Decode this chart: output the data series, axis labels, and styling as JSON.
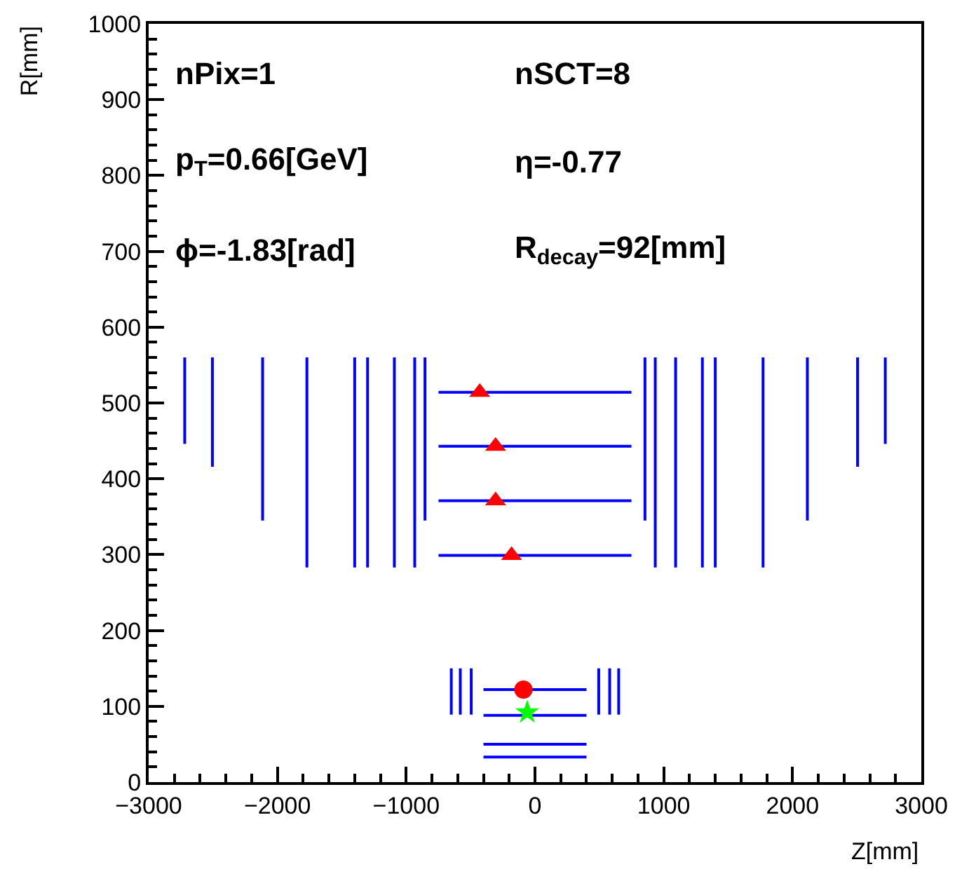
{
  "chart_data": {
    "type": "line",
    "xlabel": "Z[mm]",
    "ylabel": "R[mm]",
    "annotations": [
      "nPix=1",
      "nSCT=8",
      "p$_{T}$=0.66[GeV]",
      "η=-0.77",
      "ϕ=-1.83[rad]",
      "R$_{decay}$=92[mm]"
    ],
    "series": [
      {
        "color": "#0000ff",
        "x": [
          -749,
          749
        ],
        "values": [
          514,
          514
        ]
      },
      {
        "color": "#0000ff",
        "x": [
          -749,
          749
        ],
        "values": [
          443,
          443
        ]
      },
      {
        "color": "#0000ff",
        "x": [
          -749,
          749
        ],
        "values": [
          371,
          371
        ]
      },
      {
        "color": "#0000ff",
        "x": [
          -749,
          749
        ],
        "values": [
          299,
          299
        ]
      },
      {
        "color": "#0000ff",
        "x": [
          -400,
          400
        ],
        "values": [
          122,
          122
        ]
      },
      {
        "color": "#0000ff",
        "x": [
          -400,
          400
        ],
        "values": [
          88,
          88
        ]
      },
      {
        "color": "#0000ff",
        "x": [
          -400,
          400
        ],
        "values": [
          50,
          50
        ]
      },
      {
        "color": "#0000ff",
        "x": [
          -400,
          400
        ],
        "values": [
          33,
          33
        ]
      },
      {
        "color": "#0000ff",
        "x": [
          -2720,
          -2720
        ],
        "values": [
          446,
          560
        ]
      },
      {
        "color": "#0000ff",
        "x": [
          -2505,
          -2505
        ],
        "values": [
          416,
          560
        ]
      },
      {
        "color": "#0000ff",
        "x": [
          -2115,
          -2115
        ],
        "values": [
          345,
          560
        ]
      },
      {
        "color": "#0000ff",
        "x": [
          -1771,
          -1771
        ],
        "values": [
          283,
          560
        ]
      },
      {
        "color": "#0000ff",
        "x": [
          -1400,
          -1400
        ],
        "values": [
          283,
          560
        ]
      },
      {
        "color": "#0000ff",
        "x": [
          -1300,
          -1300
        ],
        "values": [
          283,
          560
        ]
      },
      {
        "color": "#0000ff",
        "x": [
          -1092,
          -1092
        ],
        "values": [
          283,
          560
        ]
      },
      {
        "color": "#0000ff",
        "x": [
          -934,
          -934
        ],
        "values": [
          283,
          560
        ]
      },
      {
        "color": "#0000ff",
        "x": [
          -854,
          -854
        ],
        "values": [
          345,
          560
        ]
      },
      {
        "color": "#0000ff",
        "x": [
          854,
          854
        ],
        "values": [
          345,
          560
        ]
      },
      {
        "color": "#0000ff",
        "x": [
          934,
          934
        ],
        "values": [
          283,
          560
        ]
      },
      {
        "color": "#0000ff",
        "x": [
          1092,
          1092
        ],
        "values": [
          283,
          560
        ]
      },
      {
        "color": "#0000ff",
        "x": [
          1300,
          1300
        ],
        "values": [
          283,
          560
        ]
      },
      {
        "color": "#0000ff",
        "x": [
          1400,
          1400
        ],
        "values": [
          283,
          560
        ]
      },
      {
        "color": "#0000ff",
        "x": [
          1771,
          1771
        ],
        "values": [
          283,
          560
        ]
      },
      {
        "color": "#0000ff",
        "x": [
          2115,
          2115
        ],
        "values": [
          345,
          560
        ]
      },
      {
        "color": "#0000ff",
        "x": [
          2505,
          2505
        ],
        "values": [
          416,
          560
        ]
      },
      {
        "color": "#0000ff",
        "x": [
          2720,
          2720
        ],
        "values": [
          446,
          560
        ]
      },
      {
        "color": "#0000ff",
        "x": [
          -650,
          -650
        ],
        "values": [
          89,
          150
        ]
      },
      {
        "color": "#0000ff",
        "x": [
          -580,
          -580
        ],
        "values": [
          89,
          150
        ]
      },
      {
        "color": "#0000ff",
        "x": [
          -495,
          -495
        ],
        "values": [
          89,
          150
        ]
      },
      {
        "color": "#0000ff",
        "x": [
          495,
          495
        ],
        "values": [
          89,
          150
        ]
      },
      {
        "color": "#0000ff",
        "x": [
          580,
          580
        ],
        "values": [
          89,
          150
        ]
      },
      {
        "color": "#0000ff",
        "x": [
          650,
          650
        ],
        "values": [
          89,
          150
        ]
      },
      {
        "type": "scatter",
        "color": "#ff0000",
        "marker": "triangle",
        "x": [
          -429,
          -306,
          -306,
          -182
        ],
        "values": [
          514,
          443,
          371,
          299
        ]
      },
      {
        "type": "scatter",
        "color": "#ff0000",
        "marker": "circle",
        "x": [
          -90
        ],
        "values": [
          122
        ]
      },
      {
        "type": "scatter",
        "color": "#00ff00",
        "marker": "star",
        "x": [
          -60
        ],
        "values": [
          92
        ]
      }
    ],
    "xlim": [
      -3000,
      3000
    ],
    "xticks": [
      {
        "value": -3000,
        "label": "−3000"
      },
      {
        "value": -2000,
        "label": "−2000"
      },
      {
        "value": -1000,
        "label": "−1000"
      },
      0,
      1000,
      2000,
      3000,
      {
        "value": -2800,
        "label": null
      },
      {
        "value": -2600,
        "label": null
      },
      {
        "value": -2400,
        "label": null
      },
      {
        "value": -2200,
        "label": null
      },
      {
        "value": -1800,
        "label": null
      },
      {
        "value": -1600,
        "label": null
      },
      {
        "value": -1400,
        "label": null
      },
      {
        "value": -1200,
        "label": null
      },
      {
        "value": -800,
        "label": null
      },
      {
        "value": -600,
        "label": null
      },
      {
        "value": -400,
        "label": null
      },
      {
        "value": -200,
        "label": null
      },
      {
        "value": 200,
        "label": null
      },
      {
        "value": 400,
        "label": null
      },
      {
        "value": 600,
        "label": null
      },
      {
        "value": 800,
        "label": null
      },
      {
        "value": 1200,
        "label": null
      },
      {
        "value": 1400,
        "label": null
      },
      {
        "value": 1600,
        "label": null
      },
      {
        "value": 1800,
        "label": null
      },
      {
        "value": 2200,
        "label": null
      },
      {
        "value": 2400,
        "label": null
      },
      {
        "value": 2600,
        "label": null
      },
      {
        "value": 2800,
        "label": null
      }
    ],
    "ylim": [
      0,
      1000
    ],
    "yticks": [
      0,
      100,
      200,
      300,
      400,
      500,
      600,
      700,
      800,
      900,
      1000,
      {
        "value": 20,
        "label": null
      },
      {
        "value": 40,
        "label": null
      },
      {
        "value": 60,
        "label": null
      },
      {
        "value": 80,
        "label": null
      },
      {
        "value": 120,
        "label": null
      },
      {
        "value": 140,
        "label": null
      },
      {
        "value": 160,
        "label": null
      },
      {
        "value": 180,
        "label": null
      },
      {
        "value": 220,
        "label": null
      },
      {
        "value": 240,
        "label": null
      },
      {
        "value": 260,
        "label": null
      },
      {
        "value": 280,
        "label": null
      },
      {
        "value": 320,
        "label": null
      },
      {
        "value": 340,
        "label": null
      },
      {
        "value": 360,
        "label": null
      },
      {
        "value": 380,
        "label": null
      },
      {
        "value": 420,
        "label": null
      },
      {
        "value": 440,
        "label": null
      },
      {
        "value": 460,
        "label": null
      },
      {
        "value": 480,
        "label": null
      },
      {
        "value": 520,
        "label": null
      },
      {
        "value": 540,
        "label": null
      },
      {
        "value": 560,
        "label": null
      },
      {
        "value": 580,
        "label": null
      },
      {
        "value": 620,
        "label": null
      },
      {
        "value": 640,
        "label": null
      },
      {
        "value": 660,
        "label": null
      },
      {
        "value": 680,
        "label": null
      },
      {
        "value": 720,
        "label": null
      },
      {
        "value": 740,
        "label": null
      },
      {
        "value": 760,
        "label": null
      },
      {
        "value": 780,
        "label": null
      },
      {
        "value": 820,
        "label": null
      },
      {
        "value": 840,
        "label": null
      },
      {
        "value": 860,
        "label": null
      },
      {
        "value": 880,
        "label": null
      },
      {
        "value": 920,
        "label": null
      },
      {
        "value": 940,
        "label": null
      },
      {
        "value": 960,
        "label": null
      },
      {
        "value": 980,
        "label": null
      }
    ],
    "tick_labels": "xy"
  }
}
